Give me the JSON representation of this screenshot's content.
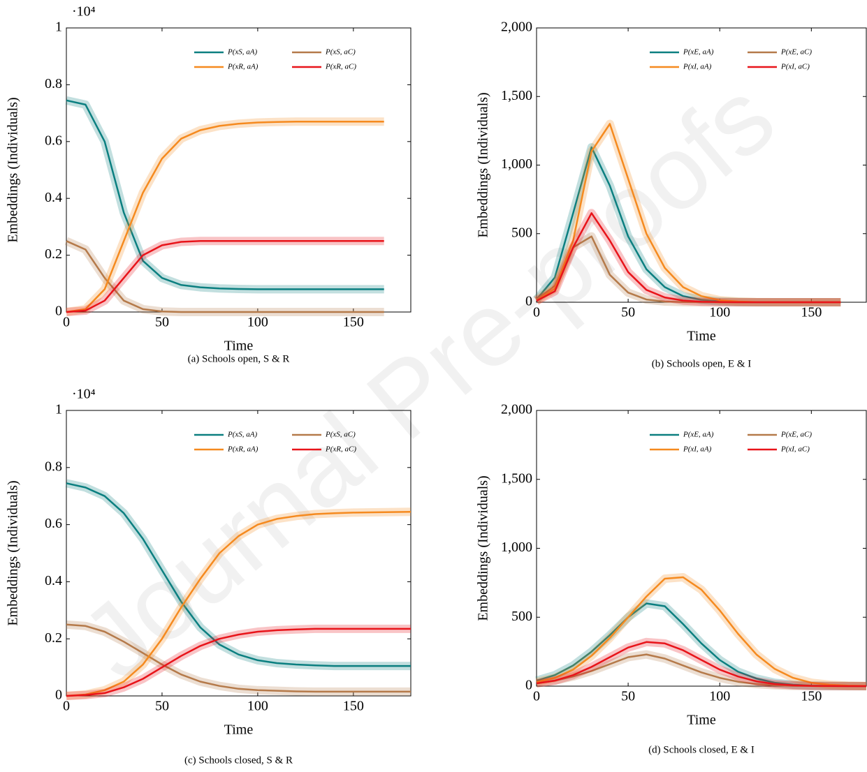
{
  "watermark": "Journal Pre-proofs",
  "chart_data": [
    {
      "type": "line",
      "caption": "(a) Schools open, S & R",
      "xlabel": "Time",
      "ylabel": "Embeddings (Individuals)",
      "y_scale_label": "·10⁴",
      "x": [
        0,
        10,
        20,
        30,
        40,
        50,
        60,
        70,
        80,
        90,
        100,
        110,
        120,
        130,
        140,
        150,
        160,
        166
      ],
      "xlim": [
        0,
        180
      ],
      "xticks": [
        0,
        50,
        100,
        150
      ],
      "ylim": [
        0,
        1
      ],
      "yticks": [
        0,
        0.2,
        0.4,
        0.6,
        0.8,
        1
      ],
      "legend": "upper right",
      "series": [
        {
          "name": "P(xS, aA)",
          "color": "#0b7f80",
          "values": [
            0.745,
            0.73,
            0.6,
            0.35,
            0.18,
            0.12,
            0.095,
            0.087,
            0.083,
            0.081,
            0.08,
            0.08,
            0.08,
            0.08,
            0.08,
            0.08,
            0.08,
            0.08
          ]
        },
        {
          "name": "P(xS, aC)",
          "color": "#b57a4a",
          "values": [
            0.25,
            0.22,
            0.12,
            0.04,
            0.01,
            0.002,
            0,
            0,
            0,
            0,
            0,
            0,
            0,
            0,
            0,
            0,
            0,
            0
          ]
        },
        {
          "name": "P(xR, aA)",
          "color": "#f58a1f",
          "values": [
            0,
            0.01,
            0.08,
            0.25,
            0.42,
            0.54,
            0.61,
            0.64,
            0.655,
            0.663,
            0.667,
            0.669,
            0.67,
            0.67,
            0.67,
            0.67,
            0.67,
            0.67
          ]
        },
        {
          "name": "P(xR, aC)",
          "color": "#e8141a",
          "values": [
            0,
            0.005,
            0.04,
            0.12,
            0.2,
            0.235,
            0.247,
            0.25,
            0.25,
            0.25,
            0.25,
            0.25,
            0.25,
            0.25,
            0.25,
            0.25,
            0.25,
            0.25
          ]
        }
      ]
    },
    {
      "type": "line",
      "caption": "(b) Schools open, E & I",
      "xlabel": "Time",
      "ylabel": "Embeddings (Individuals)",
      "x": [
        0,
        10,
        20,
        30,
        40,
        50,
        60,
        70,
        80,
        90,
        100,
        110,
        120,
        130,
        140,
        150,
        160,
        166
      ],
      "xlim": [
        0,
        180
      ],
      "xticks": [
        0,
        50,
        100,
        150
      ],
      "ylim": [
        0,
        2000
      ],
      "yticks": [
        0,
        500,
        {
          "value": 1000,
          "label": "1,000"
        },
        {
          "value": 1500,
          "label": "1,500"
        },
        {
          "value": 2000,
          "label": "2,000"
        }
      ],
      "legend": "upper right",
      "series": [
        {
          "name": "P(xE, aA)",
          "color": "#0b7f80",
          "values": [
            20,
            180,
            650,
            1130,
            850,
            480,
            240,
            110,
            45,
            18,
            6,
            2,
            0,
            0,
            0,
            0,
            0,
            0
          ]
        },
        {
          "name": "P(xE, aC)",
          "color": "#b57a4a",
          "values": [
            20,
            120,
            400,
            480,
            200,
            70,
            20,
            5,
            1,
            0,
            0,
            0,
            0,
            0,
            0,
            0,
            0,
            0
          ]
        },
        {
          "name": "P(xI, aA)",
          "color": "#f58a1f",
          "values": [
            10,
            100,
            450,
            1100,
            1300,
            900,
            500,
            250,
            110,
            45,
            15,
            5,
            1,
            0,
            0,
            0,
            0,
            0
          ]
        },
        {
          "name": "P(xI, aC)",
          "color": "#e8141a",
          "values": [
            10,
            80,
            400,
            650,
            450,
            220,
            90,
            35,
            12,
            4,
            1,
            0,
            0,
            0,
            0,
            0,
            0,
            0
          ]
        }
      ]
    },
    {
      "type": "line",
      "caption": "(c) Schools closed, S & R",
      "xlabel": "Time",
      "ylabel": "Embeddings (Individuals)",
      "y_scale_label": "·10⁴",
      "x": [
        0,
        10,
        20,
        30,
        40,
        50,
        60,
        70,
        80,
        90,
        100,
        110,
        120,
        130,
        140,
        150,
        160,
        170,
        180
      ],
      "xlim": [
        0,
        180
      ],
      "xticks": [
        0,
        50,
        100,
        150
      ],
      "ylim": [
        0,
        1
      ],
      "yticks": [
        0,
        0.2,
        0.4,
        0.6,
        0.8,
        1
      ],
      "legend": "upper right",
      "series": [
        {
          "name": "P(xS, aA)",
          "color": "#0b7f80",
          "values": [
            0.745,
            0.73,
            0.7,
            0.64,
            0.55,
            0.44,
            0.33,
            0.24,
            0.18,
            0.145,
            0.125,
            0.115,
            0.11,
            0.107,
            0.105,
            0.105,
            0.105,
            0.105,
            0.105
          ]
        },
        {
          "name": "P(xS, aC)",
          "color": "#b57a4a",
          "values": [
            0.25,
            0.245,
            0.225,
            0.19,
            0.15,
            0.11,
            0.075,
            0.05,
            0.035,
            0.025,
            0.02,
            0.018,
            0.016,
            0.015,
            0.015,
            0.015,
            0.015,
            0.015,
            0.015
          ]
        },
        {
          "name": "P(xR, aA)",
          "color": "#f58a1f",
          "values": [
            0,
            0.005,
            0.02,
            0.05,
            0.11,
            0.2,
            0.31,
            0.41,
            0.5,
            0.56,
            0.6,
            0.62,
            0.63,
            0.637,
            0.64,
            0.642,
            0.643,
            0.644,
            0.645
          ]
        },
        {
          "name": "P(xR, aC)",
          "color": "#e8141a",
          "values": [
            0,
            0.003,
            0.01,
            0.03,
            0.06,
            0.1,
            0.14,
            0.175,
            0.2,
            0.215,
            0.225,
            0.23,
            0.233,
            0.235,
            0.235,
            0.235,
            0.235,
            0.235,
            0.235
          ]
        }
      ]
    },
    {
      "type": "line",
      "caption": "(d) Schools closed, E & I",
      "xlabel": "Time",
      "ylabel": "Embeddings (Individuals)",
      "x": [
        0,
        10,
        20,
        30,
        40,
        50,
        60,
        70,
        80,
        90,
        100,
        110,
        120,
        130,
        140,
        150,
        160,
        170,
        180
      ],
      "xlim": [
        0,
        180
      ],
      "xticks": [
        0,
        50,
        100,
        150
      ],
      "ylim": [
        0,
        2000
      ],
      "yticks": [
        0,
        500,
        {
          "value": 1000,
          "label": "1,000"
        },
        {
          "value": 1500,
          "label": "1,500"
        },
        {
          "value": 2000,
          "label": "2,000"
        }
      ],
      "legend": "upper right",
      "series": [
        {
          "name": "P(xE, aA)",
          "color": "#0b7f80",
          "values": [
            40,
            80,
            150,
            250,
            370,
            500,
            600,
            580,
            450,
            310,
            190,
            105,
            55,
            25,
            10,
            4,
            2,
            1,
            0
          ]
        },
        {
          "name": "P(xE, aC)",
          "color": "#b57a4a",
          "values": [
            20,
            40,
            70,
            110,
            160,
            210,
            230,
            200,
            150,
            100,
            60,
            32,
            15,
            6,
            2,
            1,
            0,
            0,
            0
          ]
        },
        {
          "name": "P(xI, aA)",
          "color": "#f58a1f",
          "values": [
            30,
            60,
            120,
            220,
            350,
            500,
            650,
            780,
            790,
            700,
            550,
            380,
            230,
            125,
            60,
            25,
            10,
            4,
            1
          ]
        },
        {
          "name": "P(xI, aC)",
          "color": "#e8141a",
          "values": [
            20,
            40,
            80,
            140,
            210,
            280,
            320,
            310,
            260,
            190,
            120,
            70,
            35,
            15,
            6,
            2,
            1,
            0,
            0
          ]
        }
      ]
    }
  ]
}
